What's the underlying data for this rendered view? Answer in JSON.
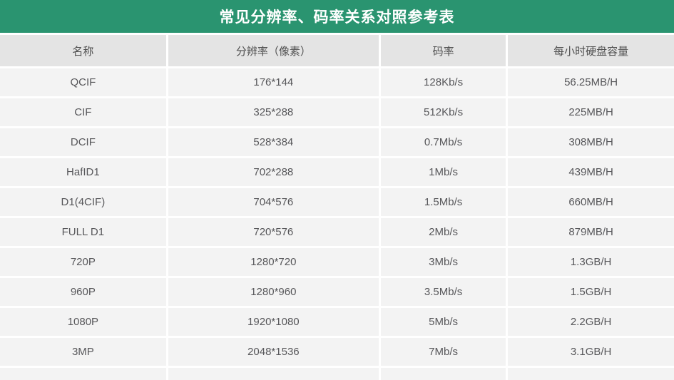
{
  "title": "常见分辨率、码率关系对照参考表",
  "colors": {
    "banner_green": "#2a9470",
    "header_row_bg": "#e4e4e4",
    "data_row_bg": "#f3f3f3",
    "separator": "#ffffff",
    "title_text": "#ffffff",
    "body_text": "#57575a"
  },
  "chart_data": {
    "type": "table",
    "title": "常见分辨率、码率关系对照参考表",
    "columns": [
      "名称",
      "分辨率（像素）",
      "码率",
      "每小时硬盘容量"
    ],
    "rows": [
      [
        "QCIF",
        "176*144",
        "128Kb/s",
        "56.25MB/H"
      ],
      [
        "CIF",
        "325*288",
        "512Kb/s",
        "225MB/H"
      ],
      [
        "DCIF",
        "528*384",
        "0.7Mb/s",
        "308MB/H"
      ],
      [
        "HafID1",
        "702*288",
        "1Mb/s",
        "439MB/H"
      ],
      [
        "D1(4CIF)",
        "704*576",
        "1.5Mb/s",
        "660MB/H"
      ],
      [
        "FULL D1",
        "720*576",
        "2Mb/s",
        "879MB/H"
      ],
      [
        "720P",
        "1280*720",
        "3Mb/s",
        "1.3GB/H"
      ],
      [
        "960P",
        "1280*960",
        "3.5Mb/s",
        "1.5GB/H"
      ],
      [
        "1080P",
        "1920*1080",
        "5Mb/s",
        "2.2GB/H"
      ],
      [
        "3MP",
        "2048*1536",
        "7Mb/s",
        "3.1GB/H"
      ]
    ],
    "partial_bottom_row_visible": true
  }
}
